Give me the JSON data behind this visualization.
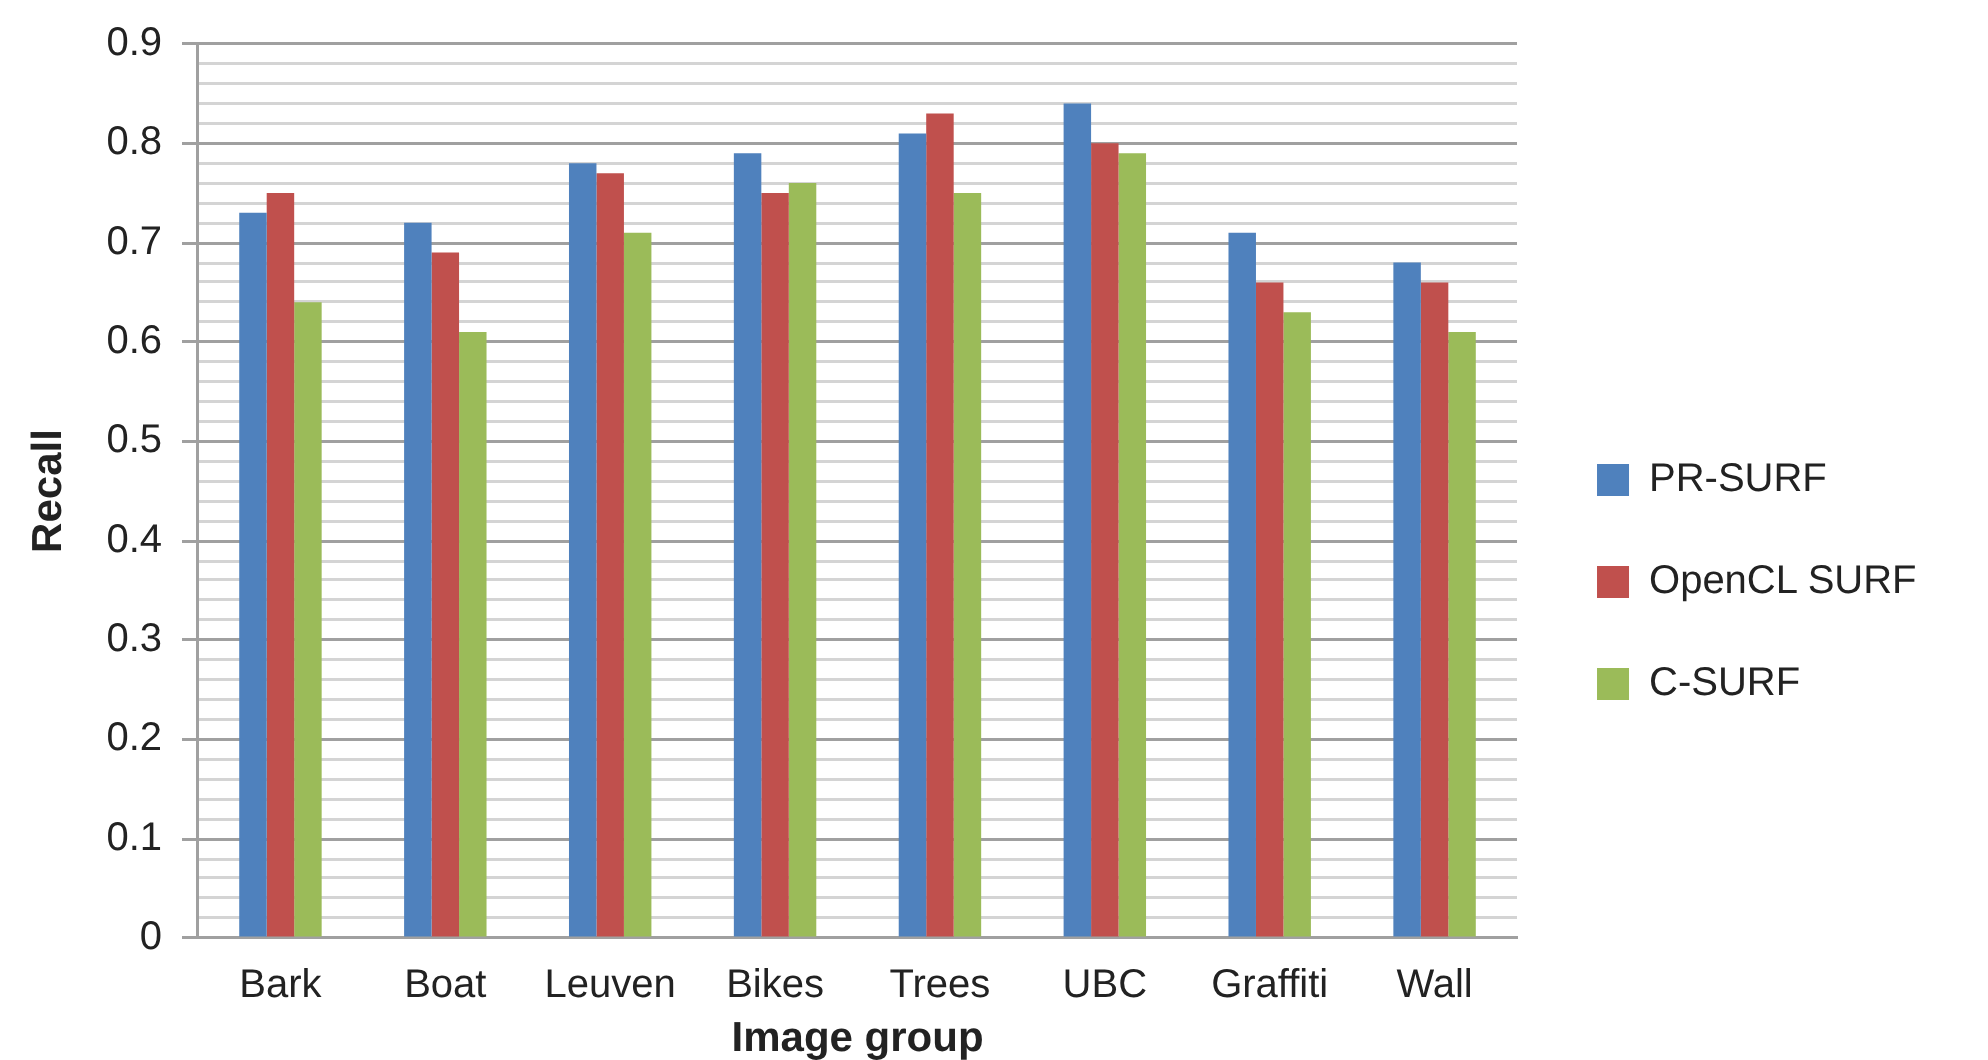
{
  "chart_data": {
    "type": "bar",
    "xlabel": "Image group",
    "ylabel": "Recall",
    "categories": [
      "Bark",
      "Boat",
      "Leuven",
      "Bikes",
      "Trees",
      "UBC",
      "Graffiti",
      "Wall"
    ],
    "series": [
      {
        "name": "PR-SURF",
        "color": "#4f81bd",
        "values": [
          0.73,
          0.72,
          0.78,
          0.79,
          0.81,
          0.84,
          0.71,
          0.68
        ]
      },
      {
        "name": "OpenCL SURF",
        "color": "#c0504d",
        "values": [
          0.75,
          0.69,
          0.77,
          0.75,
          0.83,
          0.8,
          0.66,
          0.66
        ]
      },
      {
        "name": "C-SURF",
        "color": "#9bbb59",
        "values": [
          0.64,
          0.61,
          0.71,
          0.76,
          0.75,
          0.79,
          0.63,
          0.61
        ]
      }
    ],
    "ylim": [
      0,
      0.9
    ],
    "yticks": [
      0,
      {
        "value": 0.02,
        "label": null
      },
      {
        "value": 0.04,
        "label": null
      },
      {
        "value": 0.06,
        "label": null
      },
      {
        "value": 0.08,
        "label": null
      },
      0.1,
      {
        "value": 0.12,
        "label": null
      },
      {
        "value": 0.14,
        "label": null
      },
      {
        "value": 0.16,
        "label": null
      },
      {
        "value": 0.18,
        "label": null
      },
      0.2,
      {
        "value": 0.22,
        "label": null
      },
      {
        "value": 0.24,
        "label": null
      },
      {
        "value": 0.26,
        "label": null
      },
      {
        "value": 0.28,
        "label": null
      },
      0.3,
      {
        "value": 0.32,
        "label": null
      },
      {
        "value": 0.34,
        "label": null
      },
      {
        "value": 0.36,
        "label": null
      },
      {
        "value": 0.38,
        "label": null
      },
      0.4,
      {
        "value": 0.42,
        "label": null
      },
      {
        "value": 0.44,
        "label": null
      },
      {
        "value": 0.46,
        "label": null
      },
      {
        "value": 0.48,
        "label": null
      },
      0.5,
      {
        "value": 0.52,
        "label": null
      },
      {
        "value": 0.54,
        "label": null
      },
      {
        "value": 0.56,
        "label": null
      },
      {
        "value": 0.58,
        "label": null
      },
      0.6,
      {
        "value": 0.62,
        "label": null
      },
      {
        "value": 0.64,
        "label": null
      },
      {
        "value": 0.66,
        "label": null
      },
      {
        "value": 0.68,
        "label": null
      },
      0.7,
      {
        "value": 0.72,
        "label": null
      },
      {
        "value": 0.74,
        "label": null
      },
      {
        "value": 0.76,
        "label": null
      },
      {
        "value": 0.78,
        "label": null
      },
      0.8,
      {
        "value": 0.82,
        "label": null
      },
      {
        "value": 0.84,
        "label": null
      },
      {
        "value": 0.86,
        "label": null
      },
      {
        "value": 0.88,
        "label": null
      },
      0.9
    ],
    "grid": "y",
    "legend": "right"
  }
}
